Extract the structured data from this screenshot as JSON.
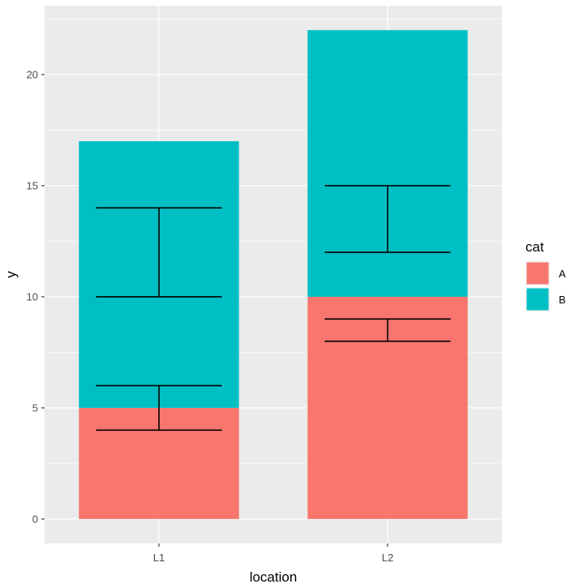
{
  "chart_data": {
    "type": "bar",
    "stacked": true,
    "categories": [
      "L1",
      "L2"
    ],
    "series": [
      {
        "name": "A",
        "values": [
          5,
          10
        ],
        "color": "#F8766D"
      },
      {
        "name": "B",
        "values": [
          12,
          12
        ],
        "color": "#00BFC4"
      }
    ],
    "error_bars": [
      {
        "category": "L1",
        "series": "A",
        "low": 4,
        "high": 6
      },
      {
        "category": "L1",
        "series": "B",
        "low": 10,
        "high": 14
      },
      {
        "category": "L2",
        "series": "A",
        "low": 8,
        "high": 9
      },
      {
        "category": "L2",
        "series": "B",
        "low": 12,
        "high": 15
      }
    ],
    "xlabel": "location",
    "ylabel": "y",
    "ylim": [
      -1.1,
      23.1
    ],
    "yticks": [
      0,
      5,
      10,
      15,
      20
    ],
    "legend": {
      "title": "cat",
      "position": "right"
    },
    "grid": true,
    "panel_color": "#EBEBEB",
    "grid_color": "#FFFFFF",
    "errorbar_color": "#000000"
  }
}
